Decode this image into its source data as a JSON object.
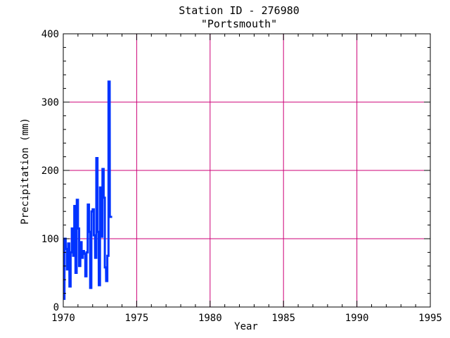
{
  "chart_data": {
    "type": "line",
    "title": "Station ID - 276980",
    "subtitle": "\"Portsmouth\"",
    "xlabel": "Year",
    "ylabel": "Precipitation (mm)",
    "xlim": [
      1970,
      1995
    ],
    "ylim": [
      0,
      400
    ],
    "x_ticks": [
      "1970",
      "1975",
      "1980",
      "1985",
      "1990",
      "1995"
    ],
    "y_ticks": [
      "0",
      "100",
      "200",
      "300",
      "400"
    ],
    "grid": true,
    "colors": {
      "series": "#0033ff",
      "grid": "#cc0077",
      "axis": "#000000"
    },
    "series": [
      {
        "x": [
          1970.0,
          1970.08,
          1970.17,
          1970.25,
          1970.33,
          1970.42,
          1970.5,
          1970.58,
          1970.67,
          1970.75,
          1970.83,
          1970.92,
          1971.0,
          1971.08,
          1971.17,
          1971.25,
          1971.33,
          1971.42,
          1971.5,
          1971.58,
          1971.67,
          1971.75,
          1971.83,
          1971.92,
          1972.0,
          1972.08,
          1972.17,
          1972.25,
          1972.33,
          1972.42,
          1972.5,
          1972.58,
          1972.67,
          1972.75,
          1972.83,
          1972.92,
          1973.0,
          1973.08,
          1973.17,
          1973.25
        ],
        "values": [
          12,
          100,
          85,
          55,
          93,
          30,
          80,
          115,
          75,
          148,
          50,
          157,
          115,
          60,
          95,
          72,
          82,
          78,
          45,
          80,
          150,
          110,
          28,
          140,
          143,
          105,
          72,
          218,
          110,
          32,
          175,
          103,
          202,
          160,
          58,
          38,
          75,
          330,
          132,
          132
        ]
      }
    ]
  }
}
